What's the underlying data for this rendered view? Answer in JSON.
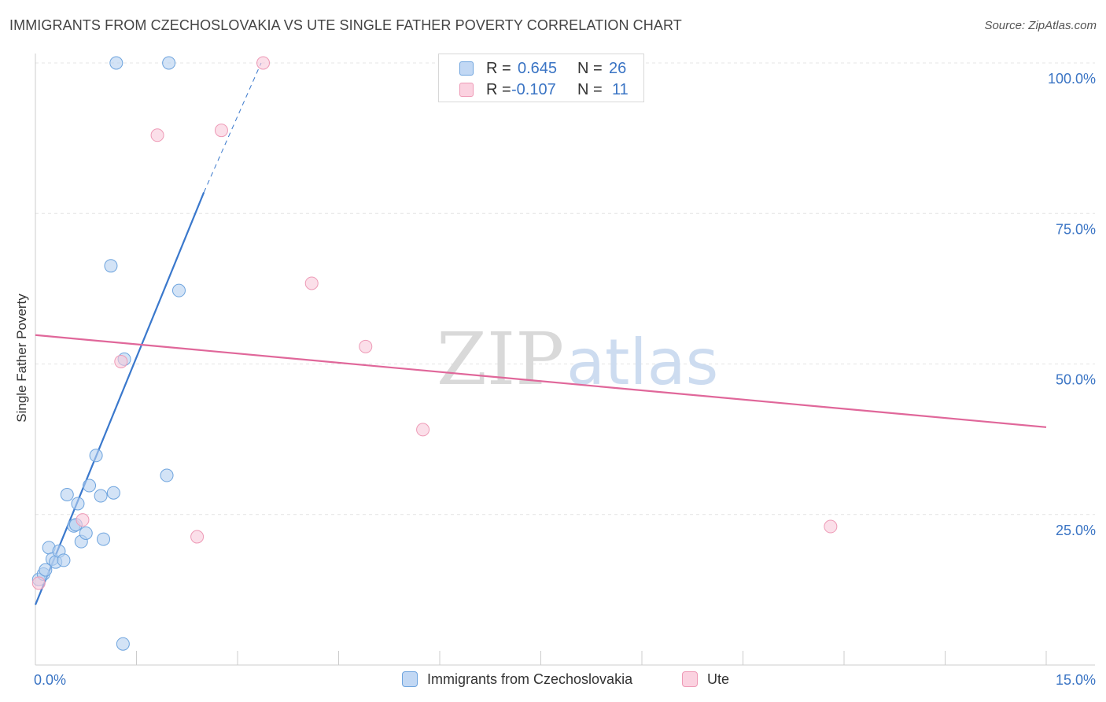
{
  "title": "IMMIGRANTS FROM CZECHOSLOVAKIA VS UTE SINGLE FATHER POVERTY CORRELATION CHART",
  "source": "Source: ZipAtlas.com",
  "watermark": {
    "zip": "ZIP",
    "atlas": "atlas"
  },
  "legend": {
    "rows": [
      {
        "r_label": "R =",
        "r_value": "0.645",
        "n_label": "N =",
        "n_value": "26",
        "color": "#aac8ee"
      },
      {
        "r_label": "R =",
        "r_value": "-0.107",
        "n_label": "N =",
        "n_value": "11",
        "color": "#f6bcd0"
      }
    ]
  },
  "bottom_legend": [
    {
      "label": "Immigrants from Czechoslovakia",
      "color": "#aac8ee"
    },
    {
      "label": "Ute",
      "color": "#f6bcd0"
    }
  ],
  "chart_data": {
    "type": "scatter",
    "ylabel": "Single Father Poverty",
    "xlim": [
      0,
      15
    ],
    "ylim": [
      0,
      100
    ],
    "x_tick_labels": [
      {
        "value": 0,
        "label": "0.0%"
      },
      {
        "value": 15,
        "label": "15.0%"
      }
    ],
    "y_tick_labels": [
      {
        "value": 25,
        "label": "25.0%"
      },
      {
        "value": 50,
        "label": "50.0%"
      },
      {
        "value": 75,
        "label": "75.0%"
      },
      {
        "value": 100,
        "label": "100.0%"
      }
    ],
    "grid": true,
    "series": [
      {
        "name": "Immigrants from Czechoslovakia",
        "color": "#6ea4de",
        "fill": "#b6d0f0",
        "points": [
          [
            0.05,
            14.2
          ],
          [
            0.12,
            15.1
          ],
          [
            0.15,
            15.8
          ],
          [
            0.2,
            19.5
          ],
          [
            0.25,
            17.6
          ],
          [
            0.3,
            17.1
          ],
          [
            0.35,
            18.9
          ],
          [
            0.42,
            17.4
          ],
          [
            0.47,
            28.3
          ],
          [
            0.57,
            23.1
          ],
          [
            0.6,
            23.3
          ],
          [
            0.63,
            26.8
          ],
          [
            0.68,
            20.5
          ],
          [
            0.75,
            21.9
          ],
          [
            0.8,
            29.8
          ],
          [
            0.9,
            34.8
          ],
          [
            0.97,
            28.1
          ],
          [
            1.01,
            20.9
          ],
          [
            1.12,
            66.3
          ],
          [
            1.16,
            28.6
          ],
          [
            1.2,
            100.0
          ],
          [
            1.3,
            3.5
          ],
          [
            1.32,
            50.8
          ],
          [
            1.95,
            31.5
          ],
          [
            1.98,
            100.0
          ],
          [
            2.13,
            62.2
          ]
        ]
      },
      {
        "name": "Ute",
        "color": "#ee9ab6",
        "fill": "#f9cadb",
        "points": [
          [
            0.05,
            13.6
          ],
          [
            0.7,
            24.1
          ],
          [
            1.27,
            50.4
          ],
          [
            1.81,
            88.0
          ],
          [
            2.4,
            21.3
          ],
          [
            2.76,
            88.8
          ],
          [
            3.38,
            100.0
          ],
          [
            4.1,
            63.4
          ],
          [
            4.9,
            52.9
          ],
          [
            5.75,
            39.1
          ],
          [
            11.8,
            23.0
          ]
        ]
      }
    ],
    "trend_lines": [
      {
        "series": "Immigrants from Czechoslovakia",
        "x1": 0,
        "y1": 10.0,
        "x2": 2.5,
        "y2": 78.5,
        "dashed_x2": 3.35,
        "dashed_y2": 100.0,
        "color": "#3a78cc"
      },
      {
        "series": "Ute",
        "x1": 0,
        "y1": 54.8,
        "x2": 15,
        "y2": 39.5,
        "color": "#e0679a"
      }
    ]
  }
}
